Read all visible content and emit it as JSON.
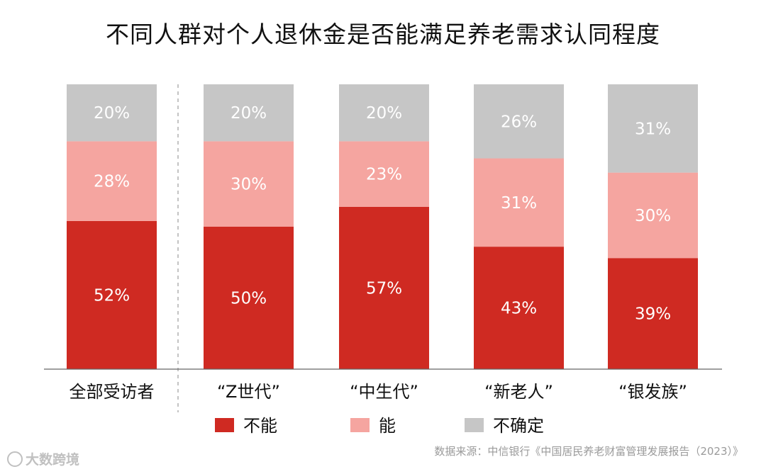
{
  "chart_data": {
    "type": "bar",
    "stacked": true,
    "title": "不同人群对个人退休金是否能满足养老需求认同程度",
    "categories": [
      "全部受访者",
      "“Z世代”",
      "“中生代”",
      "“新老人”",
      "“银发族”"
    ],
    "series": [
      {
        "name": "不能",
        "color": "#cf2a22",
        "values": [
          52,
          50,
          57,
          43,
          39
        ]
      },
      {
        "name": "能",
        "color": "#f5a5a0",
        "values": [
          28,
          30,
          23,
          31,
          30
        ]
      },
      {
        "name": "不确定",
        "color": "#c6c6c6",
        "values": [
          20,
          20,
          20,
          26,
          31
        ]
      }
    ],
    "value_suffix": "%",
    "ylim": [
      0,
      100
    ],
    "grid": false,
    "legend": "bottom",
    "separator_after_first_category": true
  },
  "source": "数据来源：中信银行《中国居民养老财富管理发展报告（2023）》",
  "watermark": "大数跨境"
}
